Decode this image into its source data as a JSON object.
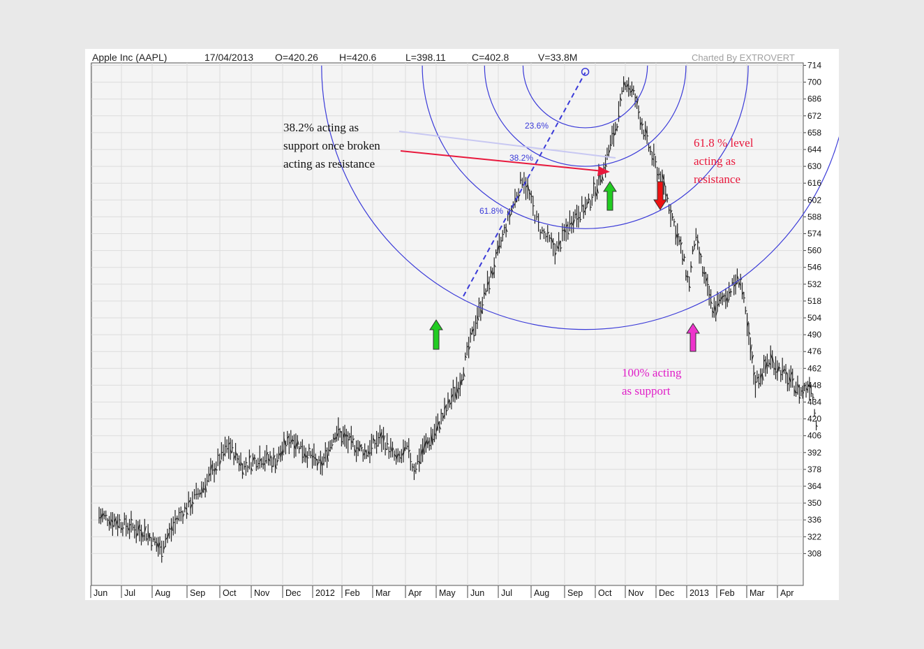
{
  "header": {
    "title": "Apple Inc (AAPL)",
    "date": "17/04/2013",
    "open": "O=420.26",
    "high": "H=420.6",
    "low": "L=398.11",
    "close": "C=402.8",
    "volume": "V=33.8M",
    "credit": "Charted By EXTROVERT"
  },
  "chart_data": {
    "type": "line",
    "title": "Apple Inc (AAPL)",
    "ylim": [
      296,
      716
    ],
    "y_ticks": [
      308,
      322,
      336,
      350,
      364,
      378,
      392,
      406,
      420,
      434,
      448,
      462,
      476,
      490,
      504,
      518,
      532,
      546,
      560,
      574,
      588,
      602,
      616,
      630,
      644,
      658,
      672,
      686,
      700,
      714
    ],
    "x_tick_labels": [
      "Jun",
      "Jul",
      "Aug",
      "Sep",
      "Oct",
      "Nov",
      "Dec",
      "2012",
      "Feb",
      "Mar",
      "Apr",
      "May",
      "Jun",
      "Jul",
      "Aug",
      "Sep",
      "Oct",
      "Nov",
      "Dec",
      "2013",
      "Feb",
      "Mar",
      "Apr"
    ],
    "grid": true,
    "series": [
      {
        "style": "daily price bars",
        "x": [
          0,
          1.5,
          2,
          2.5,
          3.2,
          4,
          4.5,
          5,
          5.5,
          6,
          6.5,
          7,
          7.5,
          8,
          8.5,
          9,
          9.5,
          9.8,
          10,
          10.3,
          10.6,
          11,
          11.5,
          12,
          12.5,
          13,
          13.5,
          14,
          14.5,
          15,
          15.5,
          16,
          16.5,
          16.7,
          17,
          17.3,
          17.6,
          18,
          18.5,
          18.8,
          19,
          19.3,
          19.6,
          20,
          20.5,
          21,
          21.5,
          22,
          22.5,
          22.8,
          23
        ],
        "y": [
          340,
          326,
          312,
          338,
          362,
          398,
          380,
          388,
          385,
          405,
          392,
          380,
          410,
          400,
          392,
          405,
          385,
          395,
          378,
          395,
          405,
          425,
          452,
          502,
          540,
          582,
          622,
          578,
          560,
          588,
          598,
          628,
          672,
          702,
          690,
          662,
          638,
          612,
          565,
          532,
          572,
          538,
          510,
          522,
          538,
          450,
          470,
          455,
          442,
          450,
          418
        ]
      }
    ],
    "fibonacci_fan": {
      "trend_low": 522,
      "trend_high": 708,
      "levels": [
        "23.6%",
        "38.2%",
        "61.8%",
        "100%"
      ]
    },
    "annotations": [
      {
        "text": [
          "38.2% acting as",
          "support once broken",
          "acting as resistance"
        ],
        "color": "#111111"
      },
      {
        "text": [
          "61.8 % level",
          "acting as",
          "resistance"
        ],
        "color": "#e8183c"
      },
      {
        "text": [
          "100% acting",
          "as support"
        ],
        "color": "#e01ec8"
      }
    ],
    "arrows": [
      {
        "direction": "up",
        "color": "#22cc22",
        "at_month": 10.5
      },
      {
        "direction": "up",
        "color": "#22cc22",
        "at_month": 16.8
      },
      {
        "direction": "down",
        "color": "#ee1111",
        "at_month": 18.4
      },
      {
        "direction": "up",
        "color": "#ee33cc",
        "at_month": 19.9
      }
    ],
    "colors": {
      "bars": "#222222",
      "fib": "#3a3ad8",
      "annotation_arrow": "#e8183c"
    }
  }
}
